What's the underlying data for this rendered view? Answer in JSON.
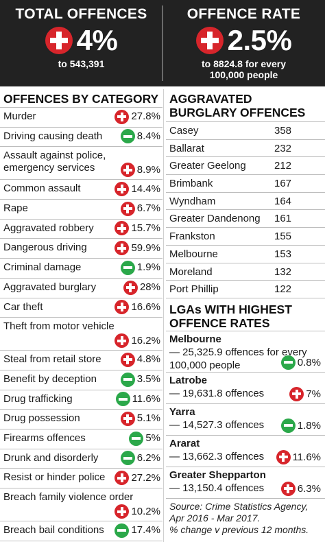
{
  "header": {
    "total": {
      "title": "TOTAL OFFENCES",
      "change": "4%",
      "sign": "plus",
      "sub": "to 543,391"
    },
    "rate": {
      "title": "OFFENCE RATE",
      "change": "2.5%",
      "sign": "plus",
      "sub_line1": "to 8824.8 for every",
      "sub_line2": "100,000 people"
    }
  },
  "categories": {
    "title": "OFFENCES BY CATEGORY",
    "items": [
      {
        "label": "Murder",
        "sign": "plus",
        "value": "27.8%"
      },
      {
        "label": "Driving causing death",
        "sign": "minus",
        "value": "8.4%"
      },
      {
        "label": "Assault against police, emergency services",
        "sign": "plus",
        "value": "8.9%"
      },
      {
        "label": "Common assault",
        "sign": "plus",
        "value": "14.4%"
      },
      {
        "label": "Rape",
        "sign": "plus",
        "value": "6.7%"
      },
      {
        "label": "Aggravated robbery",
        "sign": "plus",
        "value": "15.7%"
      },
      {
        "label": "Dangerous driving",
        "sign": "plus",
        "value": "59.9%"
      },
      {
        "label": "Criminal damage",
        "sign": "minus",
        "value": "1.9%"
      },
      {
        "label": "Aggravated burglary",
        "sign": "plus",
        "value": "28%"
      },
      {
        "label": "Car theft",
        "sign": "plus",
        "value": "16.6%"
      },
      {
        "label": "Theft from motor vehicle",
        "sign": "plus",
        "value": "16.2%"
      },
      {
        "label": "Steal from retail store",
        "sign": "plus",
        "value": "4.8%"
      },
      {
        "label": "Benefit by deception",
        "sign": "minus",
        "value": "3.5%"
      },
      {
        "label": "Drug trafficking",
        "sign": "minus",
        "value": "11.6%"
      },
      {
        "label": "Drug possession",
        "sign": "plus",
        "value": "5.1%"
      },
      {
        "label": "Firearms offences",
        "sign": "minus",
        "value": "5%"
      },
      {
        "label": "Drunk and disorderly",
        "sign": "minus",
        "value": "6.2%"
      },
      {
        "label": "Resist or hinder police",
        "sign": "plus",
        "value": "27.2%"
      },
      {
        "label": "Breach family violence order",
        "sign": "plus",
        "value": "10.2%"
      },
      {
        "label": "Breach bail conditions",
        "sign": "minus",
        "value": "17.4%"
      }
    ]
  },
  "burglary": {
    "title_line1": "AGGRAVATED",
    "title_line2": "BURGLARY OFFENCES",
    "items": [
      {
        "name": "Casey",
        "count": "358"
      },
      {
        "name": "Ballarat",
        "count": "232"
      },
      {
        "name": "Greater Geelong",
        "count": "212"
      },
      {
        "name": "Brimbank",
        "count": "167"
      },
      {
        "name": "Wyndham",
        "count": "164"
      },
      {
        "name": "Greater Dandenong",
        "count": "161"
      },
      {
        "name": "Frankston",
        "count": "155"
      },
      {
        "name": "Melbourne",
        "count": "153"
      },
      {
        "name": "Moreland",
        "count": "132"
      },
      {
        "name": "Port Phillip",
        "count": "122"
      }
    ]
  },
  "lgas": {
    "title_line1": "LGAs WITH HIGHEST",
    "title_line2": "OFFENCE RATES",
    "items": [
      {
        "name": "Melbourne",
        "line1": "— 25,325.9 offences for every",
        "line2": "100,000 people",
        "sign": "minus",
        "value": "0.8%"
      },
      {
        "name": "Latrobe",
        "line1": "— 19,631.8 offences",
        "sign": "plus",
        "value": "7%"
      },
      {
        "name": "Yarra",
        "line1": "— 14,527.3 offences",
        "sign": "minus",
        "value": "1.8%"
      },
      {
        "name": "Ararat",
        "line1": "— 13,662.3 offences",
        "sign": "plus",
        "value": "11.6%"
      },
      {
        "name": "Greater Shepparton",
        "line1": "— 13,150.4 offences",
        "sign": "plus",
        "value": "6.3%"
      }
    ]
  },
  "source": {
    "line1": "Source: Crime Statistics Agency,",
    "line2": "Apr 2016 - Mar 2017.",
    "line3": "% change v previous 12 months."
  },
  "colors": {
    "increase": "#d7252b",
    "decrease": "#2ba84a",
    "header_bg": "#222222"
  }
}
